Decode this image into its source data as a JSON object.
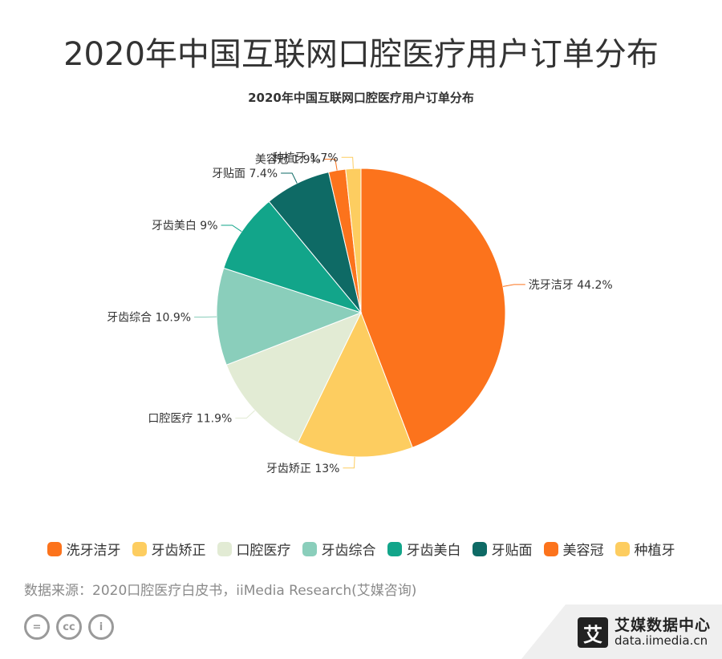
{
  "page": {
    "title": "2020年中国互联网口腔医疗用户订单分布",
    "source": "数据来源：2020口腔医疗白皮书，iiMedia Research(艾媒咨询)",
    "cc_icons": [
      "=",
      "cc",
      "i"
    ],
    "brand_logo": "艾",
    "brand_name": "艾媒数据中心",
    "brand_url": "data.iimedia.cn"
  },
  "chart_data": {
    "type": "pie",
    "title": "2020年中国互联网口腔医疗用户订单分布",
    "unit": "%",
    "categories": [
      "洗牙洁牙",
      "牙齿矫正",
      "口腔医疗",
      "牙齿综合",
      "牙齿美白",
      "牙贴面",
      "美容冠",
      "种植牙"
    ],
    "values": [
      44.2,
      13,
      11.9,
      10.9,
      9,
      7.4,
      1.9,
      1.7
    ],
    "labels": [
      "洗牙洁牙 44.2%",
      "牙齿矫正 13%",
      "口腔医疗 11.9%",
      "牙齿综合 10.9%",
      "牙齿美白 9%",
      "牙贴面 7.4%",
      "美容冠 1.9%",
      "种植牙 1.7%"
    ],
    "colors": [
      "#fc731c",
      "#fdcd60",
      "#e2ebd4",
      "#8acebb",
      "#12a58a",
      "#0e6a65",
      "#fc731c",
      "#fdcd60"
    ],
    "legend_position": "bottom"
  }
}
